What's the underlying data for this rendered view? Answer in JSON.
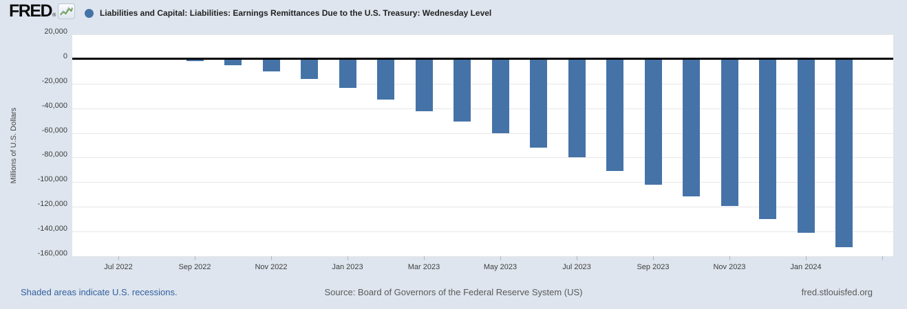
{
  "header": {
    "logo_text": "FRED",
    "registered_mark": "®",
    "legend_marker_color": "#4573a7",
    "title": "Liabilities and Capital: Liabilities: Earnings Remittances Due to the U.S. Treasury: Wednesday Level"
  },
  "chart_data": {
    "type": "bar",
    "title": "Liabilities and Capital: Liabilities: Earnings Remittances Due to the U.S. Treasury: Wednesday Level",
    "categories": [
      "Jul 2022",
      "Aug 2022",
      "Sep 2022",
      "Oct 2022",
      "Nov 2022",
      "Dec 2022",
      "Jan 2023",
      "Feb 2023",
      "Mar 2023",
      "Apr 2023",
      "May 2023",
      "Jun 2023",
      "Jul 2023",
      "Aug 2023",
      "Sep 2023",
      "Oct 2023",
      "Nov 2023",
      "Dec 2023",
      "Jan 2024",
      "Feb 2024"
    ],
    "values": [
      1000,
      0,
      -2000,
      -5000,
      -10000,
      -16000,
      -23500,
      -33000,
      -42500,
      -51000,
      -60500,
      -72000,
      -80000,
      -91000,
      -102000,
      -111500,
      -119500,
      -130000,
      -141000,
      -153000
    ],
    "xlabel": "",
    "ylabel": "Millions of U.S. Dollars",
    "ylim": [
      -160000,
      20000
    ],
    "y_tick_step": 20000,
    "y_tick_labels": [
      "20,000",
      "0",
      "-20,000",
      "-40,000",
      "-60,000",
      "-80,000",
      "-100,000",
      "-120,000",
      "-140,000",
      "-160,000"
    ],
    "x_tick_labels": [
      "Jul 2022",
      "Sep 2022",
      "Nov 2022",
      "Jan 2023",
      "Mar 2023",
      "May 2023",
      "Jul 2023",
      "Sep 2023",
      "Nov 2023",
      "Jan 2024"
    ],
    "grid": "horizontal",
    "bar_color": "#4573a7",
    "legend_position": "top-left"
  },
  "footer": {
    "recessions_note": "Shaded areas indicate U.S. recessions.",
    "source": "Source: Board of Governors of the Federal Reserve System (US)",
    "site": "fred.stlouisfed.org"
  },
  "colors": {
    "background": "#dee5ee",
    "plot_background": "#ffffff",
    "bar": "#4573a7",
    "gridline": "#e7e7e7",
    "zero_line": "#000000",
    "link_blue": "#31609f"
  }
}
